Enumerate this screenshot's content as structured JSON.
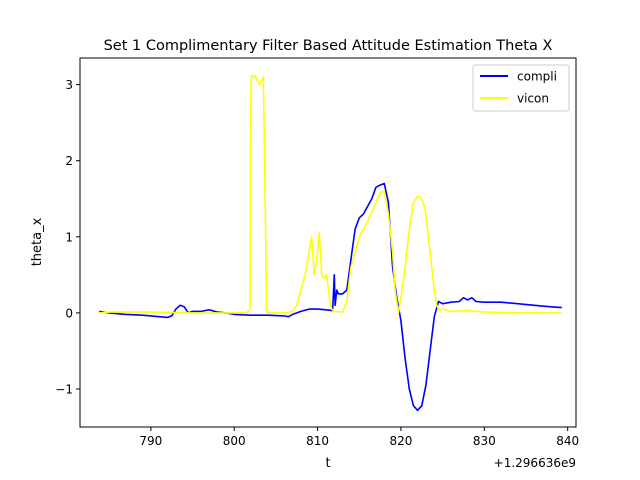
{
  "chart_data": {
    "type": "line",
    "title": "Set 1 Complimentary Filter Based Attitude Estimation Theta X",
    "xlabel": "t",
    "ylabel": "theta_x",
    "x_offset_label": "+1.296636e9",
    "xlim": [
      781.5,
      841.0
    ],
    "ylim": [
      -1.5,
      3.35
    ],
    "xticks": [
      790,
      800,
      810,
      820,
      830,
      840
    ],
    "xtick_labels": [
      "790",
      "800",
      "810",
      "820",
      "830",
      "840"
    ],
    "yticks": [
      -1,
      0,
      1,
      2,
      3
    ],
    "ytick_labels": [
      "−1",
      "0",
      "1",
      "2",
      "3"
    ],
    "grid": false,
    "legend_position": "upper right",
    "series": [
      {
        "name": "compli",
        "color": "#0000ff",
        "x": [
          783.8,
          785,
          787,
          789,
          790,
          791,
          792,
          792.5,
          793,
          793.5,
          794,
          794.5,
          795,
          796,
          797,
          798,
          799,
          800,
          802,
          804,
          806,
          806.5,
          807,
          808,
          809,
          810,
          811,
          811.8,
          812.0,
          812.1,
          812.3,
          812.5,
          813,
          813.5,
          814,
          814.5,
          815,
          815.5,
          816,
          816.5,
          817,
          817.5,
          818,
          818.5,
          819,
          819.5,
          820,
          820.5,
          821,
          821.5,
          822,
          822.5,
          823,
          823.5,
          824,
          824.5,
          825,
          826,
          827,
          827.5,
          828,
          828.5,
          829,
          830,
          832,
          834,
          836,
          838,
          839.3
        ],
        "y": [
          0.02,
          0.0,
          -0.02,
          -0.03,
          -0.04,
          -0.05,
          -0.06,
          -0.04,
          0.05,
          0.1,
          0.08,
          0.0,
          0.02,
          0.02,
          0.04,
          0.01,
          0.0,
          -0.02,
          -0.03,
          -0.03,
          -0.04,
          -0.05,
          -0.02,
          0.02,
          0.05,
          0.05,
          0.04,
          0.03,
          0.5,
          0.1,
          0.3,
          0.25,
          0.25,
          0.3,
          0.7,
          1.1,
          1.25,
          1.3,
          1.4,
          1.5,
          1.65,
          1.68,
          1.7,
          1.45,
          0.6,
          0.2,
          -0.1,
          -0.6,
          -1.0,
          -1.22,
          -1.28,
          -1.22,
          -0.95,
          -0.5,
          -0.05,
          0.15,
          0.12,
          0.14,
          0.15,
          0.2,
          0.17,
          0.2,
          0.15,
          0.14,
          0.14,
          0.12,
          0.1,
          0.08,
          0.07
        ]
      },
      {
        "name": "vicon",
        "color": "#ffff00",
        "x": [
          783.8,
          785,
          790,
          795,
          800,
          801.5,
          801.9,
          802.0,
          802.1,
          802.3,
          802.5,
          803,
          803.5,
          803.7,
          803.9,
          804.0,
          806,
          807,
          807.5,
          808,
          808.5,
          809,
          809.3,
          809.6,
          809.9,
          810.2,
          810.5,
          810.8,
          811.1,
          811.4,
          811.7,
          812,
          813,
          813.5,
          814,
          815,
          816,
          817,
          817.5,
          818,
          818.5,
          819,
          819.3,
          819.7,
          820,
          820.5,
          821,
          821.5,
          822,
          822.3,
          822.7,
          823,
          823.5,
          824,
          824.3,
          824.6,
          825,
          826,
          828,
          830,
          835,
          839.3
        ],
        "y": [
          0.0,
          0.01,
          0.01,
          0.0,
          0.0,
          0.0,
          0.05,
          3.0,
          3.12,
          3.1,
          3.12,
          3.0,
          3.1,
          1.5,
          0.02,
          0.0,
          0.0,
          0.02,
          0.1,
          0.3,
          0.5,
          0.8,
          1.0,
          0.5,
          0.7,
          1.05,
          0.5,
          0.45,
          0.5,
          0.2,
          0.05,
          0.02,
          0.01,
          0.15,
          0.6,
          1.0,
          1.2,
          1.45,
          1.58,
          1.6,
          1.3,
          0.8,
          0.3,
          0.0,
          0.2,
          0.6,
          1.1,
          1.45,
          1.53,
          1.52,
          1.45,
          1.3,
          0.8,
          0.3,
          0.1,
          0.03,
          0.05,
          0.02,
          0.03,
          0.01,
          0.0,
          0.0
        ]
      }
    ]
  }
}
